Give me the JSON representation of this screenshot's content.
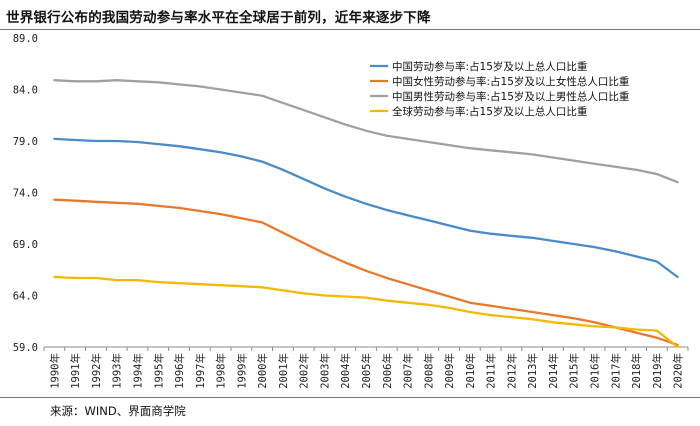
{
  "title": "世界银行公布的我国劳动参与率水平在全球居于前列，近年来逐步下降",
  "source": "来源：WIND、界面商学院",
  "chart_data": {
    "type": "line",
    "title": "世界银行公布的我国劳动参与率水平在全球居于前列，近年来逐步下降",
    "xlabel": "",
    "ylabel": "",
    "ylim": [
      59.0,
      89.0
    ],
    "yticks": [
      "89.0",
      "84.0",
      "79.0",
      "74.0",
      "69.0",
      "64.0",
      "59.0"
    ],
    "grid": false,
    "legend_position": "top-right",
    "categories": [
      "1990年",
      "1991年",
      "1992年",
      "1993年",
      "1994年",
      "1995年",
      "1996年",
      "1997年",
      "1998年",
      "1999年",
      "2000年",
      "2001年",
      "2002年",
      "2003年",
      "2004年",
      "2005年",
      "2006年",
      "2007年",
      "2008年",
      "2009年",
      "2010年",
      "2011年",
      "2012年",
      "2013年",
      "2014年",
      "2015年",
      "2016年",
      "2017年",
      "2018年",
      "2019年",
      "2020年"
    ],
    "series": [
      {
        "name": "中国劳动参与率:占15岁及以上总人口比重",
        "color": "#4a8ac9",
        "values": [
          79.2,
          79.1,
          79.0,
          79.0,
          78.9,
          78.7,
          78.5,
          78.2,
          77.9,
          77.5,
          77.0,
          76.2,
          75.3,
          74.4,
          73.6,
          72.9,
          72.3,
          71.8,
          71.3,
          70.8,
          70.3,
          70.0,
          69.8,
          69.6,
          69.3,
          69.0,
          68.7,
          68.3,
          67.8,
          67.3,
          65.8
        ]
      },
      {
        "name": "中国女性劳动参与率:占15岁及以上女性总人口比重",
        "color": "#e8782b",
        "values": [
          73.3,
          73.2,
          73.1,
          73.0,
          72.9,
          72.7,
          72.5,
          72.2,
          71.9,
          71.5,
          71.1,
          70.1,
          69.1,
          68.1,
          67.2,
          66.4,
          65.7,
          65.1,
          64.5,
          63.9,
          63.3,
          63.0,
          62.7,
          62.4,
          62.1,
          61.8,
          61.4,
          60.9,
          60.4,
          59.9,
          59.2
        ]
      },
      {
        "name": "中国男性劳动参与率:占15岁及以上男性总人口比重",
        "color": "#a0a0a0",
        "values": [
          84.9,
          84.8,
          84.8,
          84.9,
          84.8,
          84.7,
          84.5,
          84.3,
          84.0,
          83.7,
          83.4,
          82.7,
          82.0,
          81.3,
          80.6,
          80.0,
          79.5,
          79.2,
          78.9,
          78.6,
          78.3,
          78.1,
          77.9,
          77.7,
          77.4,
          77.1,
          76.8,
          76.5,
          76.2,
          75.8,
          75.0
        ]
      },
      {
        "name": "全球劳动参与率:占15岁及以上总人口比重",
        "color": "#f5b800",
        "values": [
          65.8,
          65.7,
          65.7,
          65.5,
          65.5,
          65.3,
          65.2,
          65.1,
          65.0,
          64.9,
          64.8,
          64.5,
          64.2,
          64.0,
          63.9,
          63.8,
          63.5,
          63.3,
          63.1,
          62.8,
          62.4,
          62.1,
          61.9,
          61.7,
          61.4,
          61.2,
          61.0,
          60.9,
          60.7,
          60.6,
          59.0
        ]
      }
    ]
  }
}
